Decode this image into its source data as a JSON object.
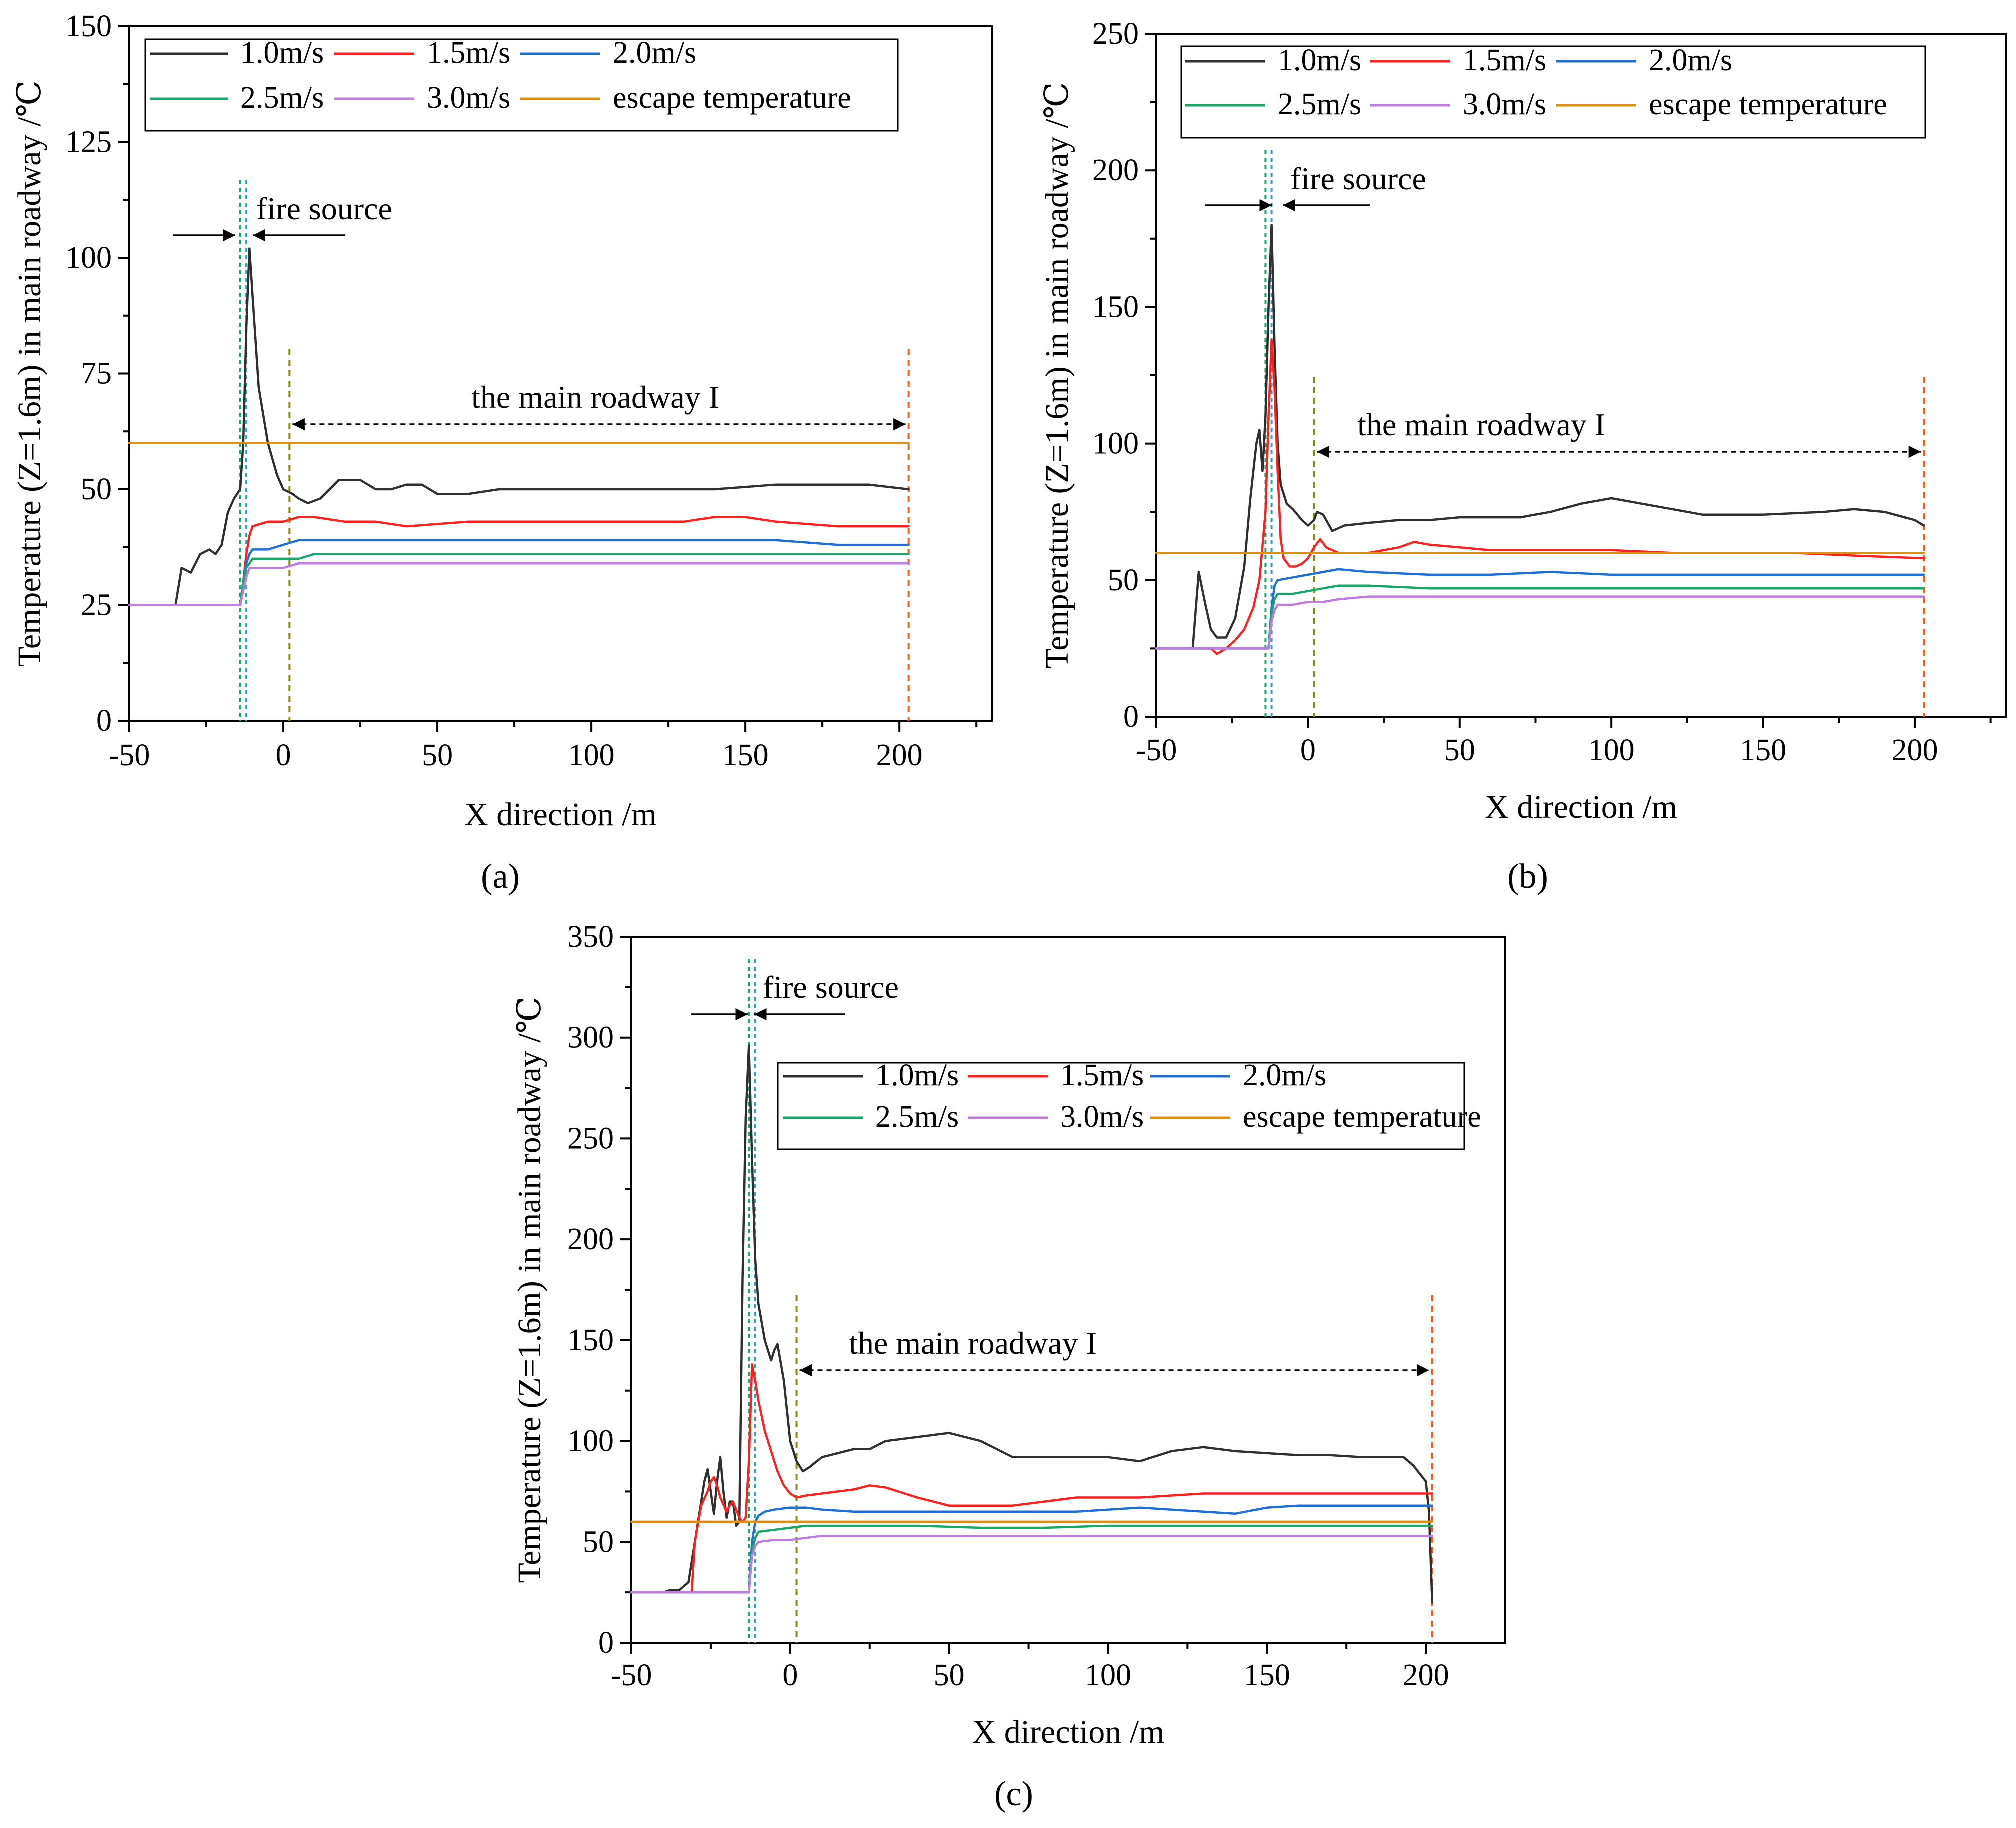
{
  "chart_data": [
    {
      "type": "line",
      "panel_label": "(a)",
      "xlabel": "X direction /m",
      "ylabel": "Temperature (Z=1.6m) in main roadway /℃",
      "xlim": [
        -50,
        230
      ],
      "ylim": [
        0,
        150
      ],
      "xticks": [
        -50,
        0,
        50,
        100,
        150,
        200
      ],
      "yticks": [
        0,
        25,
        50,
        75,
        100,
        125,
        150
      ],
      "legend_position": "top-left",
      "annotations": {
        "fire_source": "fire source",
        "roadway": "the main roadway I"
      },
      "markers": {
        "fire_source_lines": [
          -14,
          -12
        ],
        "roadway_start": 2,
        "roadway_end": 203
      },
      "series": [
        {
          "name": "1.0m/s",
          "color": "#303030",
          "x": [
            -35,
            -33,
            -30,
            -27,
            -24,
            -22,
            -20,
            -18,
            -16,
            -14,
            -13,
            -12,
            -11,
            -10,
            -8,
            -5,
            -2,
            0,
            3,
            5,
            8,
            12,
            18,
            25,
            30,
            35,
            40,
            45,
            50,
            60,
            70,
            80,
            90,
            100,
            120,
            140,
            160,
            175,
            190,
            203
          ],
          "y": [
            25,
            33,
            32,
            36,
            37,
            36,
            38,
            45,
            48,
            50,
            60,
            85,
            102,
            92,
            72,
            60,
            53,
            50,
            49,
            48,
            47,
            48,
            52,
            52,
            50,
            50,
            51,
            51,
            49,
            49,
            50,
            50,
            50,
            50,
            50,
            50,
            51,
            51,
            51,
            50
          ]
        },
        {
          "name": "1.5m/s",
          "color": "#ff2020",
          "x": [
            -50,
            -14,
            -13,
            -12,
            -11,
            -10,
            -5,
            0,
            5,
            10,
            20,
            30,
            40,
            60,
            80,
            100,
            120,
            130,
            140,
            150,
            160,
            180,
            203
          ],
          "y": [
            25,
            25,
            30,
            36,
            40,
            42,
            43,
            43,
            44,
            44,
            43,
            43,
            42,
            43,
            43,
            43,
            43,
            43,
            44,
            44,
            43,
            42,
            42
          ]
        },
        {
          "name": "2.0m/s",
          "color": "#1f6fd6",
          "x": [
            -50,
            -14,
            -13,
            -12,
            -11,
            -10,
            -5,
            0,
            5,
            10,
            20,
            30,
            40,
            60,
            80,
            100,
            120,
            140,
            160,
            180,
            203
          ],
          "y": [
            25,
            25,
            30,
            34,
            36,
            37,
            37,
            38,
            39,
            39,
            39,
            39,
            39,
            39,
            39,
            39,
            39,
            39,
            39,
            38,
            38
          ]
        },
        {
          "name": "2.5m/s",
          "color": "#1aa86a",
          "x": [
            -50,
            -14,
            -13,
            -12,
            -11,
            -10,
            -5,
            0,
            5,
            10,
            20,
            40,
            60,
            80,
            100,
            120,
            140,
            160,
            180,
            203
          ],
          "y": [
            25,
            25,
            30,
            33,
            34,
            35,
            35,
            35,
            35,
            36,
            36,
            36,
            36,
            36,
            36,
            36,
            36,
            36,
            36,
            36
          ]
        },
        {
          "name": "3.0m/s",
          "color": "#c07de0",
          "x": [
            -50,
            -14,
            -13,
            -12,
            -11,
            -10,
            -5,
            0,
            5,
            10,
            20,
            40,
            60,
            80,
            100,
            120,
            140,
            160,
            180,
            203
          ],
          "y": [
            25,
            25,
            28,
            31,
            33,
            33,
            33,
            33,
            34,
            34,
            34,
            34,
            34,
            34,
            34,
            34,
            34,
            34,
            34,
            34
          ]
        },
        {
          "name": "escape temperature",
          "color": "#e09010",
          "x": [
            -50,
            203
          ],
          "y": [
            60,
            60
          ]
        }
      ]
    },
    {
      "type": "line",
      "panel_label": "(b)",
      "xlabel": "X direction /m",
      "ylabel": "Temperature (Z=1.6m) in main roadway /℃",
      "xlim": [
        -50,
        230
      ],
      "ylim": [
        0,
        250
      ],
      "xticks": [
        -50,
        0,
        50,
        100,
        150,
        200
      ],
      "yticks": [
        0,
        50,
        100,
        150,
        200,
        250
      ],
      "legend_position": "top-left",
      "annotations": {
        "fire_source": "fire source",
        "roadway": "the main roadway I"
      },
      "markers": {
        "fire_source_lines": [
          -14,
          -12
        ],
        "roadway_start": 2,
        "roadway_end": 203
      },
      "series": [
        {
          "name": "1.0m/s",
          "color": "#303030",
          "x": [
            -38,
            -36,
            -34,
            -32,
            -30,
            -27,
            -24,
            -21,
            -19,
            -17,
            -16,
            -15,
            -14,
            -13,
            -12,
            -11,
            -10,
            -9,
            -7,
            -5,
            -2,
            0,
            2,
            3,
            5,
            8,
            12,
            20,
            30,
            40,
            50,
            60,
            70,
            80,
            90,
            100,
            110,
            120,
            130,
            140,
            150,
            170,
            180,
            190,
            200,
            203
          ],
          "y": [
            25,
            53,
            42,
            32,
            29,
            29,
            36,
            55,
            80,
            100,
            105,
            90,
            110,
            150,
            180,
            135,
            100,
            85,
            78,
            76,
            72,
            70,
            72,
            75,
            74,
            68,
            70,
            71,
            72,
            72,
            73,
            73,
            73,
            75,
            78,
            80,
            78,
            76,
            74,
            74,
            74,
            75,
            76,
            75,
            72,
            70
          ]
        },
        {
          "name": "1.5m/s",
          "color": "#ff2020",
          "x": [
            -50,
            -32,
            -30,
            -27,
            -24,
            -21,
            -18,
            -16,
            -14,
            -13,
            -12,
            -11,
            -10,
            -9,
            -8,
            -6,
            -4,
            -2,
            0,
            2,
            4,
            6,
            10,
            20,
            30,
            35,
            40,
            50,
            60,
            80,
            100,
            120,
            140,
            160,
            180,
            203
          ],
          "y": [
            25,
            25,
            23,
            25,
            28,
            32,
            40,
            50,
            75,
            110,
            138,
            120,
            90,
            65,
            58,
            55,
            55,
            56,
            58,
            62,
            65,
            62,
            60,
            60,
            62,
            64,
            63,
            62,
            61,
            61,
            61,
            60,
            60,
            60,
            59,
            58
          ]
        },
        {
          "name": "2.0m/s",
          "color": "#1f6fd6",
          "x": [
            -50,
            -13,
            -12,
            -11,
            -10,
            -5,
            0,
            5,
            10,
            20,
            40,
            60,
            80,
            100,
            120,
            140,
            160,
            180,
            203
          ],
          "y": [
            25,
            25,
            40,
            48,
            50,
            51,
            52,
            53,
            54,
            53,
            52,
            52,
            53,
            52,
            52,
            52,
            52,
            52,
            52
          ]
        },
        {
          "name": "2.5m/s",
          "color": "#1aa86a",
          "x": [
            -50,
            -13,
            -12,
            -11,
            -10,
            -5,
            0,
            5,
            10,
            20,
            40,
            60,
            80,
            100,
            120,
            140,
            160,
            180,
            203
          ],
          "y": [
            25,
            25,
            38,
            43,
            45,
            45,
            46,
            47,
            48,
            48,
            47,
            47,
            47,
            47,
            47,
            47,
            47,
            47,
            47
          ]
        },
        {
          "name": "3.0m/s",
          "color": "#c07de0",
          "x": [
            -50,
            -13,
            -12,
            -11,
            -10,
            -5,
            0,
            5,
            10,
            20,
            40,
            60,
            80,
            100,
            120,
            140,
            160,
            180,
            203
          ],
          "y": [
            25,
            25,
            35,
            39,
            41,
            41,
            42,
            42,
            43,
            44,
            44,
            44,
            44,
            44,
            44,
            44,
            44,
            44,
            44
          ]
        },
        {
          "name": "escape temperature",
          "color": "#e09010",
          "x": [
            -50,
            203
          ],
          "y": [
            60,
            60
          ]
        }
      ]
    },
    {
      "type": "line",
      "panel_label": "(c)",
      "xlabel": "X direction /m",
      "ylabel": "Temperature (Z=1.6m) in main roadway /℃",
      "xlim": [
        -50,
        225
      ],
      "ylim": [
        0,
        350
      ],
      "xticks": [
        -50,
        0,
        50,
        100,
        150,
        200
      ],
      "yticks": [
        0,
        50,
        100,
        150,
        200,
        250,
        300,
        350
      ],
      "legend_position": "top-right",
      "annotations": {
        "fire_source": "fire source",
        "roadway": "the main roadway I"
      },
      "markers": {
        "fire_source_lines": [
          -13,
          -11
        ],
        "roadway_start": 2,
        "roadway_end": 202
      },
      "series": [
        {
          "name": "1.0m/s",
          "color": "#303030",
          "x": [
            -40,
            -38,
            -35,
            -32,
            -29,
            -27,
            -26,
            -25,
            -24,
            -23,
            -22,
            -21,
            -20,
            -19,
            -18,
            -17,
            -16,
            -15,
            -14,
            -13,
            -12,
            -11,
            -10,
            -8,
            -6,
            -5,
            -4,
            -2,
            0,
            2,
            4,
            6,
            10,
            15,
            20,
            25,
            30,
            40,
            50,
            60,
            70,
            80,
            90,
            100,
            110,
            120,
            130,
            140,
            150,
            160,
            170,
            180,
            190,
            193,
            196,
            200,
            201,
            202
          ],
          "y": [
            25,
            26,
            26,
            30,
            60,
            80,
            86,
            75,
            64,
            80,
            92,
            75,
            62,
            70,
            70,
            58,
            60,
            180,
            260,
            296,
            240,
            190,
            168,
            150,
            140,
            145,
            148,
            130,
            100,
            90,
            85,
            87,
            92,
            94,
            96,
            96,
            100,
            102,
            104,
            100,
            92,
            92,
            92,
            92,
            90,
            95,
            97,
            95,
            94,
            93,
            93,
            92,
            92,
            92,
            88,
            80,
            65,
            20
          ]
        },
        {
          "name": "1.5m/s",
          "color": "#ff2020",
          "x": [
            -50,
            -31,
            -30,
            -28,
            -26,
            -25,
            -24,
            -23,
            -22,
            -20,
            -19,
            -18,
            -17,
            -16,
            -15,
            -14,
            -13,
            -12,
            -11,
            -10,
            -8,
            -6,
            -4,
            -2,
            0,
            2,
            5,
            10,
            20,
            25,
            30,
            40,
            50,
            60,
            70,
            80,
            90,
            100,
            110,
            120,
            130,
            140,
            150,
            160,
            170,
            180,
            190,
            200,
            202
          ],
          "y": [
            25,
            25,
            50,
            68,
            75,
            80,
            82,
            78,
            72,
            65,
            68,
            70,
            66,
            62,
            60,
            62,
            90,
            138,
            130,
            120,
            105,
            95,
            85,
            78,
            74,
            72,
            73,
            74,
            76,
            78,
            77,
            72,
            68,
            68,
            68,
            70,
            72,
            72,
            72,
            73,
            74,
            74,
            74,
            74,
            74,
            74,
            74,
            74,
            74
          ]
        },
        {
          "name": "2.0m/s",
          "color": "#1f6fd6",
          "x": [
            -50,
            -13,
            -12,
            -11,
            -10,
            -8,
            -5,
            0,
            5,
            10,
            20,
            30,
            40,
            50,
            60,
            70,
            80,
            90,
            100,
            110,
            120,
            130,
            140,
            150,
            160,
            170,
            180,
            190,
            200,
            202
          ],
          "y": [
            25,
            25,
            50,
            60,
            63,
            65,
            66,
            67,
            67,
            66,
            65,
            65,
            65,
            65,
            65,
            65,
            65,
            65,
            66,
            67,
            66,
            65,
            64,
            67,
            68,
            68,
            68,
            68,
            68,
            68
          ]
        },
        {
          "name": "2.5m/s",
          "color": "#1aa86a",
          "x": [
            -50,
            -13,
            -12,
            -11,
            -10,
            -5,
            0,
            5,
            10,
            20,
            40,
            60,
            80,
            100,
            120,
            140,
            160,
            180,
            202
          ],
          "y": [
            25,
            25,
            45,
            52,
            55,
            56,
            57,
            58,
            58,
            58,
            58,
            57,
            57,
            58,
            58,
            58,
            58,
            58,
            58
          ]
        },
        {
          "name": "3.0m/s",
          "color": "#c07de0",
          "x": [
            -50,
            -13,
            -12,
            -11,
            -10,
            -5,
            0,
            5,
            10,
            20,
            40,
            60,
            80,
            100,
            120,
            140,
            160,
            180,
            202
          ],
          "y": [
            25,
            25,
            43,
            48,
            50,
            51,
            51,
            52,
            53,
            53,
            53,
            53,
            53,
            53,
            53,
            53,
            53,
            53,
            53
          ]
        },
        {
          "name": "escape temperature",
          "color": "#e09010",
          "x": [
            -50,
            202
          ],
          "y": [
            60,
            60
          ]
        }
      ]
    }
  ]
}
